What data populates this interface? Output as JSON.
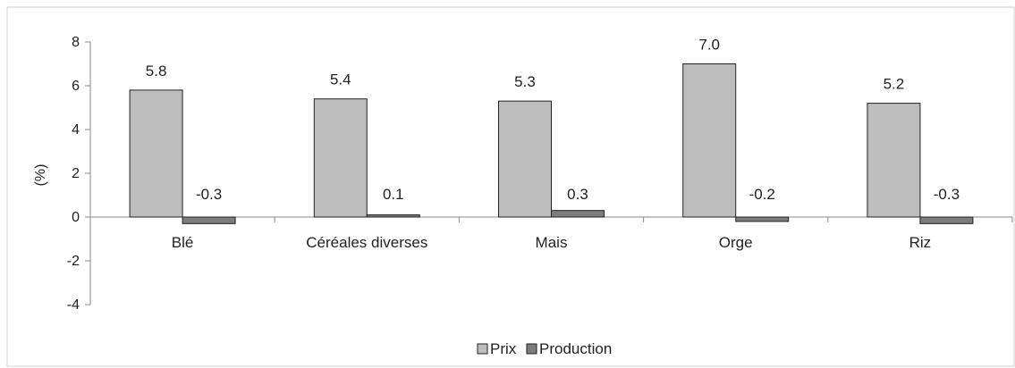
{
  "chart_data": {
    "type": "bar",
    "categories": [
      "Blé",
      "Céréales diverses",
      "Mais",
      "Orge",
      "Riz"
    ],
    "series": [
      {
        "name": "Prix",
        "values": [
          5.8,
          5.4,
          5.3,
          7.0,
          5.2
        ],
        "labels": [
          "5.8",
          "5.4",
          "5.3",
          "7.0",
          "5.2"
        ],
        "color": "#bdbdbd"
      },
      {
        "name": "Production",
        "values": [
          -0.3,
          0.1,
          0.3,
          -0.2,
          -0.3
        ],
        "labels": [
          "-0.3",
          "0.1",
          "0.3",
          "-0.2",
          "-0.3"
        ],
        "color": "#7d7d7d"
      }
    ],
    "ylabel": "(%)",
    "ylim": [
      -4,
      8
    ],
    "yticks": [
      -4,
      -2,
      0,
      2,
      4,
      6,
      8
    ],
    "grid": false,
    "legend_position": "bottom-center"
  }
}
